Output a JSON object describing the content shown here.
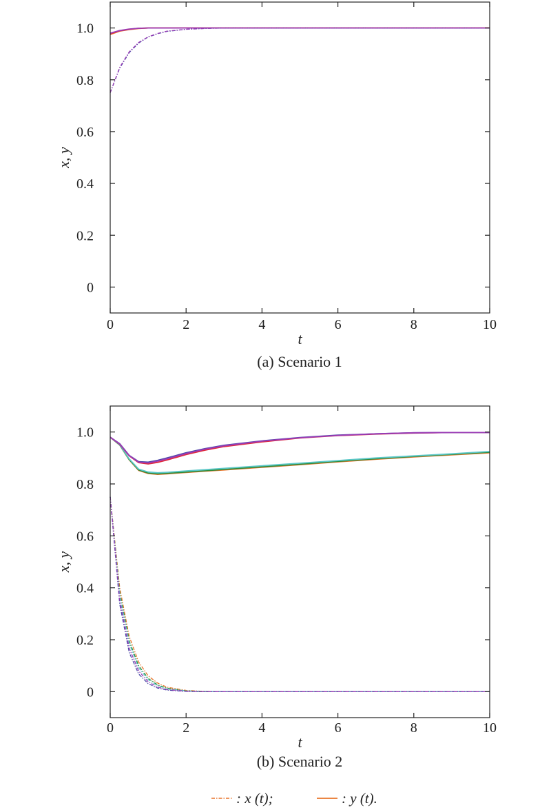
{
  "chart_data": [
    {
      "type": "line",
      "caption": "(a) Scenario 1",
      "xlabel": "t",
      "ylabel": "x, y",
      "xlim": [
        0,
        10
      ],
      "ylim": [
        -0.1,
        1.1
      ],
      "xticks": [
        0,
        2,
        4,
        6,
        8,
        10
      ],
      "xtick_labels": [
        "0",
        "2",
        "4",
        "6",
        "8",
        "10"
      ],
      "yticks": [
        0,
        0.2,
        0.4,
        0.6,
        0.8,
        1.0
      ],
      "ytick_labels": [
        "0",
        "0.2",
        "0.4",
        "0.6",
        "0.8",
        "1.0"
      ],
      "grid": false,
      "x": [
        0,
        0.25,
        0.5,
        0.75,
        1,
        1.25,
        1.5,
        2,
        2.5,
        3,
        4,
        5,
        6,
        7,
        8,
        9,
        10
      ],
      "series": [
        {
          "style": "solid",
          "color": "#e8742a",
          "values": [
            0.975,
            0.988,
            0.994,
            0.998,
            1,
            1,
            1,
            1,
            1,
            1,
            1,
            1,
            1,
            1,
            1,
            1,
            1
          ]
        },
        {
          "style": "solid",
          "color": "#e0283c",
          "values": [
            0.978,
            0.989,
            0.995,
            0.999,
            1,
            1,
            1,
            1,
            1,
            1,
            1,
            1,
            1,
            1,
            1,
            1,
            1
          ]
        },
        {
          "style": "solid",
          "color": "#9a3bb5",
          "values": [
            0.98,
            0.99,
            0.996,
            0.999,
            1,
            1,
            1,
            1,
            1,
            1,
            1,
            1,
            1,
            1,
            1,
            1,
            1
          ]
        },
        {
          "style": "dashdot",
          "color": "#4a4aa8",
          "values": [
            0.75,
            0.845,
            0.905,
            0.942,
            0.965,
            0.978,
            0.987,
            0.995,
            0.998,
            1,
            1,
            1,
            1,
            1,
            1,
            1,
            1
          ]
        },
        {
          "style": "dashdot",
          "color": "#9a3bb5",
          "values": [
            0.75,
            0.848,
            0.908,
            0.944,
            0.966,
            0.979,
            0.988,
            0.995,
            0.998,
            1,
            1,
            1,
            1,
            1,
            1,
            1,
            1
          ]
        }
      ]
    },
    {
      "type": "line",
      "caption": "(b) Scenario 2",
      "xlabel": "t",
      "ylabel": "x, y",
      "xlim": [
        0,
        10
      ],
      "ylim": [
        -0.1,
        1.1
      ],
      "xticks": [
        0,
        2,
        4,
        6,
        8,
        10
      ],
      "xtick_labels": [
        "0",
        "2",
        "4",
        "6",
        "8",
        "10"
      ],
      "yticks": [
        0,
        0.2,
        0.4,
        0.6,
        0.8,
        1.0
      ],
      "ytick_labels": [
        "0",
        "0.2",
        "0.4",
        "0.6",
        "0.8",
        "1.0"
      ],
      "grid": false,
      "x": [
        0,
        0.25,
        0.5,
        0.75,
        1,
        1.25,
        1.5,
        2,
        2.5,
        3,
        4,
        5,
        6,
        7,
        8,
        9,
        10
      ],
      "series": [
        {
          "style": "solid",
          "color": "#e8742a",
          "values": [
            0.98,
            0.95,
            0.893,
            0.852,
            0.84,
            0.837,
            0.839,
            0.844,
            0.849,
            0.854,
            0.864,
            0.874,
            0.885,
            0.895,
            0.904,
            0.912,
            0.92
          ]
        },
        {
          "style": "solid",
          "color": "#2e8b3a",
          "values": [
            0.98,
            0.95,
            0.894,
            0.854,
            0.842,
            0.839,
            0.841,
            0.846,
            0.851,
            0.856,
            0.866,
            0.876,
            0.887,
            0.897,
            0.906,
            0.914,
            0.922
          ]
        },
        {
          "style": "solid",
          "color": "#5cc8c8",
          "values": [
            0.98,
            0.951,
            0.896,
            0.857,
            0.846,
            0.843,
            0.845,
            0.85,
            0.855,
            0.86,
            0.87,
            0.88,
            0.89,
            0.9,
            0.908,
            0.916,
            0.925
          ]
        },
        {
          "style": "solid",
          "color": "#e0283c",
          "values": [
            0.98,
            0.953,
            0.908,
            0.882,
            0.877,
            0.883,
            0.892,
            0.913,
            0.93,
            0.944,
            0.962,
            0.977,
            0.986,
            0.992,
            0.996,
            0.998,
            0.998
          ]
        },
        {
          "style": "solid",
          "color": "#4a4aa8",
          "values": [
            0.98,
            0.955,
            0.91,
            0.886,
            0.884,
            0.891,
            0.9,
            0.92,
            0.936,
            0.949,
            0.966,
            0.979,
            0.988,
            0.993,
            0.997,
            0.998,
            0.998
          ]
        },
        {
          "style": "solid",
          "color": "#9a3bb5",
          "values": [
            0.98,
            0.954,
            0.909,
            0.884,
            0.881,
            0.888,
            0.897,
            0.917,
            0.934,
            0.947,
            0.965,
            0.978,
            0.987,
            0.993,
            0.997,
            0.998,
            0.998
          ]
        },
        {
          "style": "dashdot",
          "color": "#e8742a",
          "values": [
            0.75,
            0.4,
            0.213,
            0.114,
            0.061,
            0.033,
            0.017,
            0.005,
            0.001,
            0,
            0,
            0,
            0,
            0,
            0,
            0,
            0
          ]
        },
        {
          "style": "dashdot",
          "color": "#2e8b3a",
          "values": [
            0.75,
            0.383,
            0.196,
            0.1,
            0.051,
            0.026,
            0.013,
            0.003,
            0.001,
            0,
            0,
            0,
            0,
            0,
            0,
            0,
            0
          ]
        },
        {
          "style": "dashdot",
          "color": "#5cc8c8",
          "values": [
            0.75,
            0.372,
            0.185,
            0.092,
            0.046,
            0.023,
            0.011,
            0.003,
            0,
            0,
            0,
            0,
            0,
            0,
            0,
            0,
            0
          ]
        },
        {
          "style": "dashdot",
          "color": "#4a4aa8",
          "values": [
            0.75,
            0.337,
            0.151,
            0.068,
            0.031,
            0.014,
            0.006,
            0.001,
            0,
            0,
            0,
            0,
            0,
            0,
            0,
            0,
            0
          ]
        },
        {
          "style": "dashdot",
          "color": "#9a3bb5",
          "values": [
            0.75,
            0.355,
            0.168,
            0.08,
            0.038,
            0.018,
            0.008,
            0.002,
            0,
            0,
            0,
            0,
            0,
            0,
            0,
            0,
            0
          ]
        }
      ]
    }
  ],
  "legend": {
    "placement": "bottom",
    "color": "#e8742a",
    "items": [
      {
        "style": "dashdot",
        "label": ": x (t);"
      },
      {
        "style": "solid",
        "label": ": y (t)."
      }
    ]
  }
}
